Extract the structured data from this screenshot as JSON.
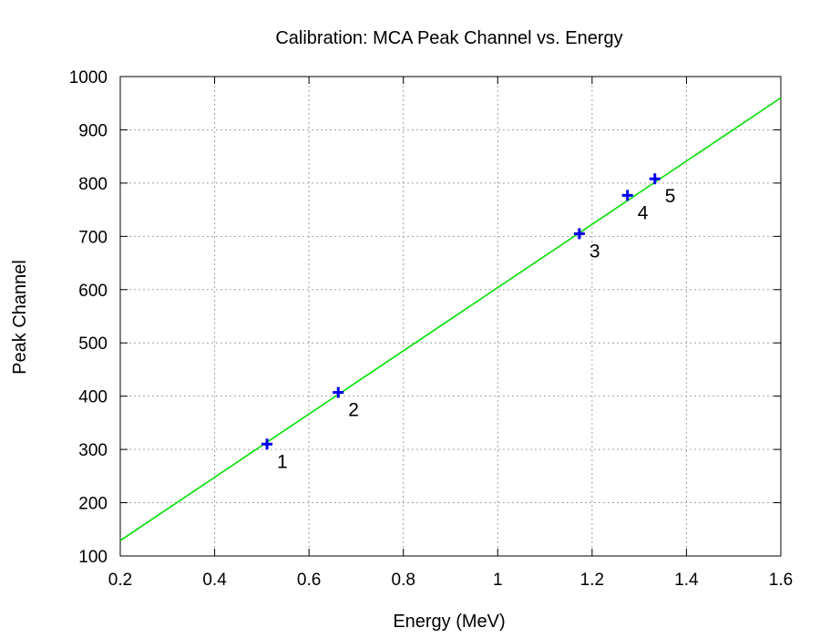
{
  "chart_data": {
    "type": "scatter",
    "title": "Calibration: MCA Peak Channel vs. Energy",
    "xlabel": "Energy (MeV)",
    "ylabel": "Peak Channel",
    "xlim": [
      0.2,
      1.6
    ],
    "ylim": [
      100,
      1000
    ],
    "xticks": [
      0.2,
      0.4,
      0.6,
      0.8,
      1.0,
      1.2,
      1.4,
      1.6
    ],
    "xtick_labels": [
      "0.2",
      "0.4",
      "0.6",
      "0.8",
      "1",
      "1.2",
      "1.4",
      "1.6"
    ],
    "yticks": [
      100,
      200,
      300,
      400,
      500,
      600,
      700,
      800,
      900,
      1000
    ],
    "ytick_labels": [
      "100",
      "200",
      "300",
      "400",
      "500",
      "600",
      "700",
      "800",
      "900",
      "1000"
    ],
    "grid": true,
    "series": [
      {
        "type": "scatter",
        "marker": "plus",
        "color": "#0000ee",
        "points": [
          {
            "x": 0.511,
            "y": 310,
            "label": "1"
          },
          {
            "x": 0.662,
            "y": 407,
            "label": "2"
          },
          {
            "x": 1.173,
            "y": 705,
            "label": "3"
          },
          {
            "x": 1.275,
            "y": 777,
            "label": "4"
          },
          {
            "x": 1.333,
            "y": 808,
            "label": "5"
          }
        ]
      },
      {
        "type": "line",
        "color": "#00e000",
        "x": [
          0.2,
          1.6
        ],
        "y": [
          129,
          960
        ]
      }
    ]
  }
}
